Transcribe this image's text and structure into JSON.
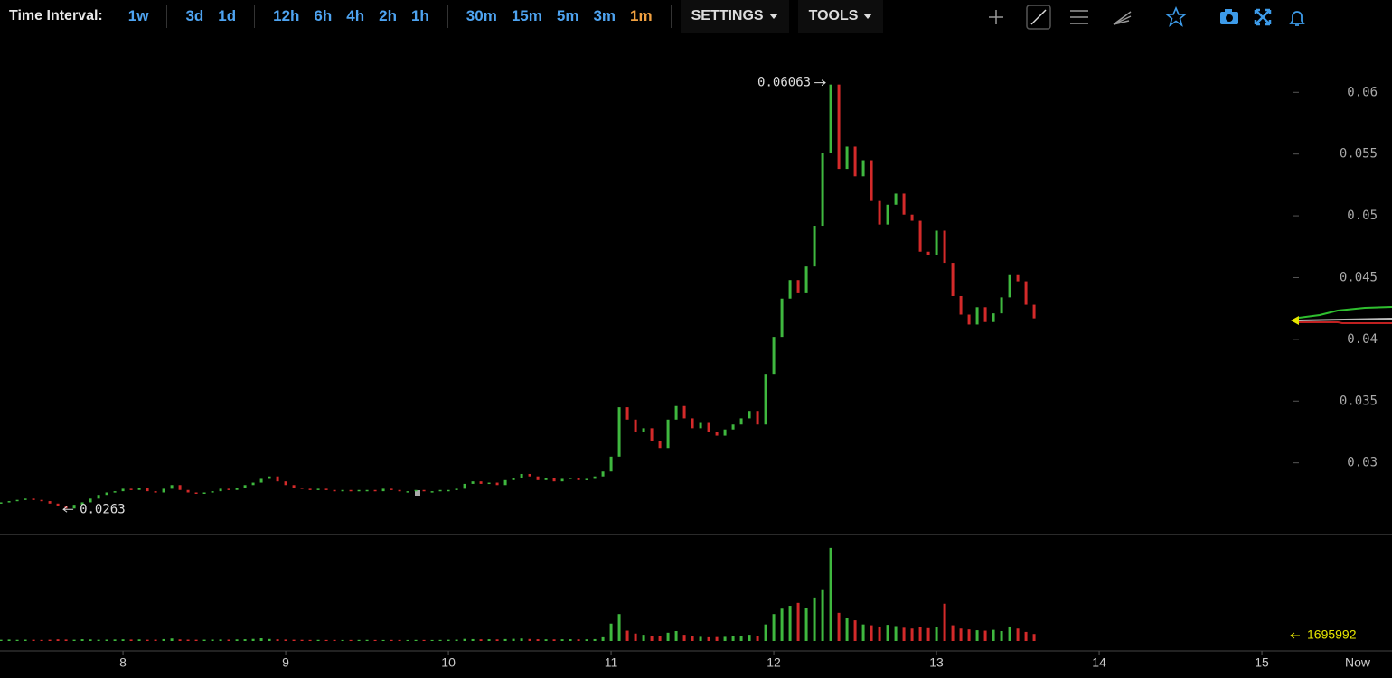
{
  "toolbar": {
    "label": "Time Interval:",
    "interval_groups": [
      [
        "1w"
      ],
      [
        "3d",
        "1d"
      ],
      [
        "12h",
        "6h",
        "4h",
        "2h",
        "1h"
      ],
      [
        "30m",
        "15m",
        "5m",
        "3m",
        "1m"
      ]
    ],
    "active_interval": "1m",
    "menus": [
      "SETTINGS",
      "TOOLS"
    ]
  },
  "chart_data": {
    "type": "candlestick",
    "x": [
      7.25,
      7.3,
      7.35,
      7.4,
      7.45,
      7.5,
      7.55,
      7.6,
      7.65,
      7.7,
      7.75,
      7.8,
      7.85,
      7.9,
      7.95,
      8.0,
      8.05,
      8.1,
      8.15,
      8.2,
      8.25,
      8.3,
      8.35,
      8.4,
      8.45,
      8.5,
      8.55,
      8.6,
      8.65,
      8.7,
      8.75,
      8.8,
      8.85,
      8.9,
      8.95,
      9.0,
      9.05,
      9.1,
      9.15,
      9.2,
      9.25,
      9.3,
      9.35,
      9.4,
      9.45,
      9.5,
      9.55,
      9.6,
      9.65,
      9.7,
      9.75,
      9.8,
      9.85,
      9.9,
      9.95,
      10.0,
      10.05,
      10.1,
      10.15,
      10.2,
      10.25,
      10.3,
      10.35,
      10.4,
      10.45,
      10.5,
      10.55,
      10.6,
      10.65,
      10.7,
      10.75,
      10.8,
      10.85,
      10.9,
      10.95,
      11.0,
      11.05,
      11.1,
      11.15,
      11.2,
      11.25,
      11.3,
      11.35,
      11.4,
      11.45,
      11.5,
      11.55,
      11.6,
      11.65,
      11.7,
      11.75,
      11.8,
      11.85,
      11.9,
      11.95,
      12.0,
      12.05,
      12.1,
      12.15,
      12.2,
      12.25,
      12.3,
      12.35,
      12.4,
      12.45,
      12.5,
      12.55,
      12.6,
      12.65,
      12.7,
      12.75,
      12.8,
      12.85,
      12.9,
      12.95,
      13.0,
      13.05,
      13.1,
      13.15,
      13.2,
      13.25,
      13.3,
      13.35,
      13.4,
      13.45,
      13.5,
      13.55,
      13.6
    ],
    "values": [
      0.0268,
      0.0269,
      0.027,
      0.0271,
      0.027,
      0.0269,
      0.0267,
      0.0265,
      0.0263,
      0.0266,
      0.0268,
      0.0271,
      0.0274,
      0.0276,
      0.0277,
      0.0279,
      0.0278,
      0.028,
      0.0277,
      0.0276,
      0.0279,
      0.0282,
      0.0278,
      0.0276,
      0.0275,
      0.0276,
      0.0277,
      0.0279,
      0.0278,
      0.028,
      0.0282,
      0.0284,
      0.0287,
      0.0289,
      0.0285,
      0.0282,
      0.028,
      0.0279,
      0.0278,
      0.0279,
      0.0278,
      0.0277,
      0.0278,
      0.0277,
      0.0278,
      0.0278,
      0.0277,
      0.0279,
      0.0278,
      0.0277,
      0.0277,
      0.0278,
      0.0277,
      0.0277,
      0.0278,
      0.0278,
      0.0279,
      0.0283,
      0.0285,
      0.0283,
      0.0284,
      0.0282,
      0.0286,
      0.0288,
      0.0291,
      0.0289,
      0.0286,
      0.0288,
      0.0285,
      0.0287,
      0.0288,
      0.0286,
      0.0287,
      0.0289,
      0.0293,
      0.0305,
      0.0345,
      0.0335,
      0.0325,
      0.0328,
      0.0318,
      0.0312,
      0.0335,
      0.0346,
      0.0336,
      0.0328,
      0.0333,
      0.0325,
      0.0322,
      0.0327,
      0.0331,
      0.0336,
      0.0342,
      0.0331,
      0.0372,
      0.0402,
      0.0433,
      0.0448,
      0.0438,
      0.0459,
      0.0492,
      0.0551,
      0.06063,
      0.0538,
      0.0556,
      0.0532,
      0.0545,
      0.0512,
      0.0493,
      0.0509,
      0.0518,
      0.0501,
      0.0496,
      0.0471,
      0.0468,
      0.0488,
      0.0462,
      0.0435,
      0.042,
      0.0412,
      0.0426,
      0.0414,
      0.0421,
      0.0434,
      0.0452,
      0.0447,
      0.0428,
      0.0417
    ],
    "volume": [
      300000,
      350000,
      280000,
      320000,
      300000,
      260000,
      310000,
      400000,
      350000,
      300000,
      420000,
      380000,
      300000,
      330000,
      360000,
      400000,
      350000,
      380000,
      300000,
      320000,
      450000,
      600000,
      380000,
      320000,
      300000,
      310000,
      340000,
      360000,
      330000,
      380000,
      420000,
      500000,
      650000,
      480000,
      400000,
      350000,
      300000,
      280000,
      260000,
      270000,
      250000,
      260000,
      240000,
      250000,
      260000,
      270000,
      250000,
      240000,
      260000,
      250000,
      240000,
      260000,
      250000,
      240000,
      260000,
      300000,
      320000,
      500000,
      450000,
      400000,
      420000,
      380000,
      460000,
      520000,
      600000,
      480000,
      420000,
      400000,
      380000,
      410000,
      430000,
      390000,
      400000,
      450000,
      900000,
      4200000,
      6500000,
      2500000,
      1800000,
      1500000,
      1300000,
      1200000,
      2000000,
      2400000,
      1500000,
      1100000,
      1000000,
      900000,
      950000,
      1000000,
      1100000,
      1300000,
      1500000,
      1200000,
      4000000,
      6500000,
      7800000,
      8500000,
      9200000,
      8000000,
      10500000,
      12500000,
      22500000,
      6800000,
      5500000,
      5000000,
      4000000,
      3800000,
      3500000,
      3900000,
      3600000,
      3200000,
      3000000,
      3400000,
      3100000,
      3300000,
      9000000,
      3800000,
      3000000,
      2800000,
      2600000,
      2500000,
      2700000,
      2400000,
      3500000,
      3000000,
      2200000,
      1695992
    ],
    "xlim": [
      7.244,
      15.133
    ],
    "xticks": [
      8,
      9,
      10,
      11,
      12,
      13,
      14,
      15
    ],
    "now_label": "Now",
    "ylim": [
      0.0242,
      0.0647
    ],
    "yticks": [
      0.03,
      0.035,
      0.04,
      0.045,
      0.05,
      0.055,
      0.06
    ],
    "volume_ylim": [
      0,
      24000000
    ],
    "up_color": "#3fb83f",
    "down_color": "#d42a2a"
  }
}
